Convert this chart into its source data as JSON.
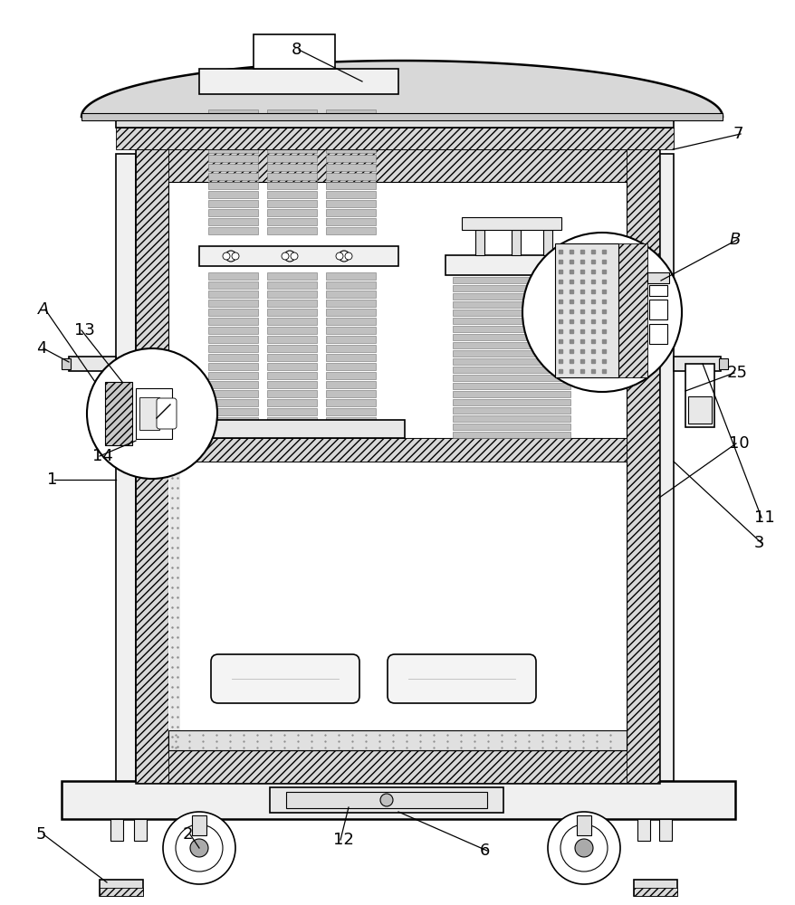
{
  "fig_width": 8.79,
  "fig_height": 10.0,
  "bg_color": "#ffffff",
  "lc": "#000000",
  "lw": 1.2,
  "lw_thick": 1.8,
  "hatch_fc": "#cccccc",
  "coil_fc": "#bbbbbb",
  "coil_ec": "#888888",
  "label_fs": 13
}
